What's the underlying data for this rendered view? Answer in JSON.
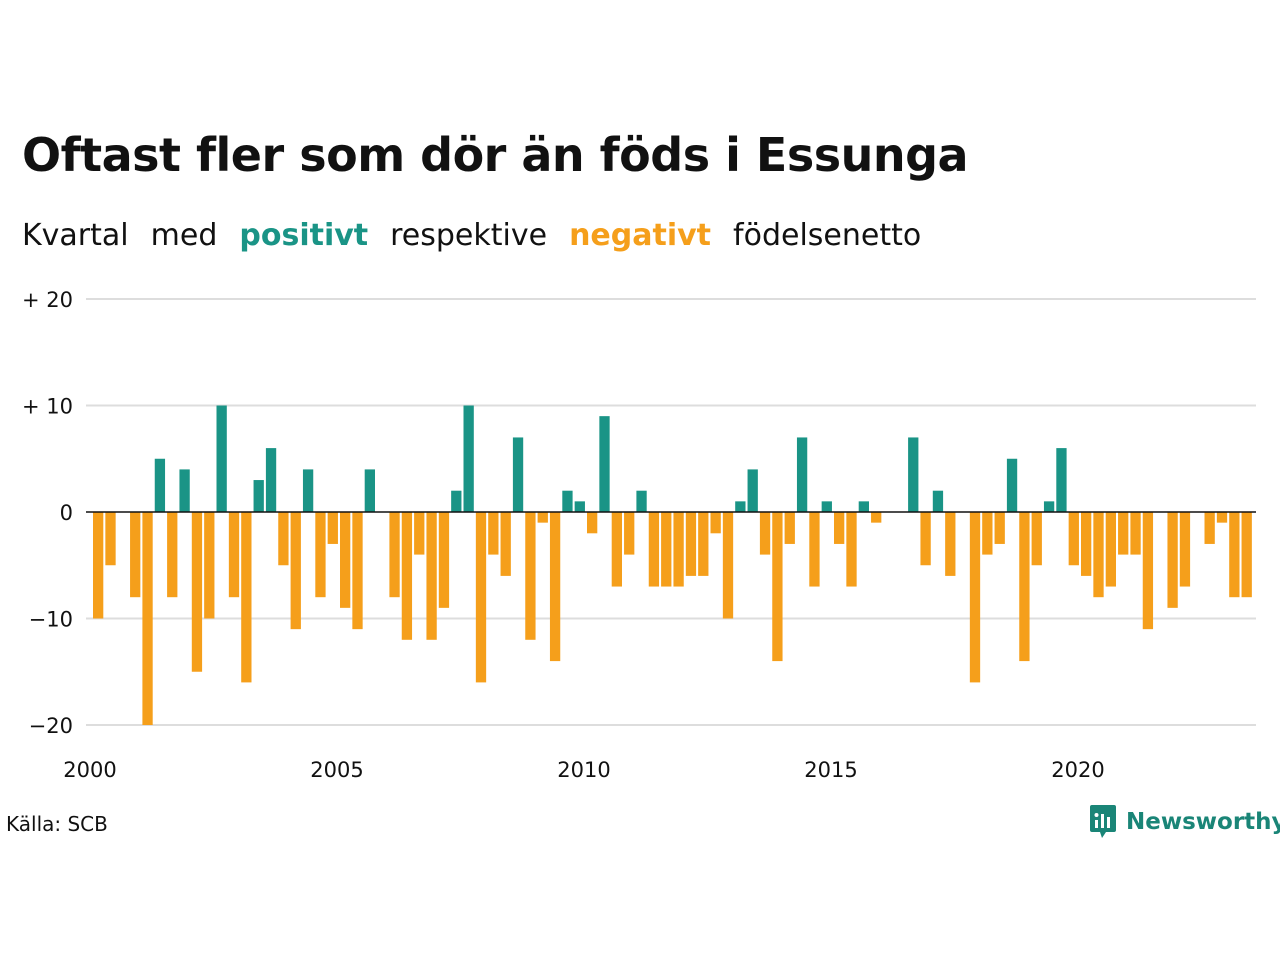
{
  "title": "Oftast fler som dör än föds i Essunga",
  "subtitle": {
    "w1": "Kvartal",
    "w2": "med",
    "positive_word": "positivt",
    "w4": "respektive",
    "negative_word": "negativt",
    "w6": "födelsenetto"
  },
  "source": "Källa: SCB",
  "brand": "Newsworthy",
  "colors": {
    "positive": "#1a9486",
    "negative": "#f59f1b",
    "brand": "#1a8577"
  },
  "chart_data": {
    "type": "bar",
    "title": "Oftast fler som dör än föds i Essunga",
    "xlabel": "",
    "ylabel": "",
    "ylim": [
      -20,
      20
    ],
    "y_ticks": [
      {
        "value": 20,
        "label": "+ 20"
      },
      {
        "value": 10,
        "label": "+ 10"
      },
      {
        "value": 0,
        "label": "0"
      },
      {
        "value": -10,
        "label": "−10"
      },
      {
        "value": -20,
        "label": "−20"
      }
    ],
    "x_ticks": [
      "2000",
      "2005",
      "2010",
      "2015",
      "2020"
    ],
    "grid": true,
    "start": "2000 Q1",
    "values": [
      -10,
      -5,
      0,
      -8,
      -20,
      5,
      -8,
      4,
      -15,
      -10,
      10,
      -8,
      -16,
      3,
      6,
      -5,
      -11,
      4,
      -8,
      -3,
      -9,
      -11,
      4,
      0,
      -8,
      -12,
      -4,
      -12,
      -9,
      2,
      10,
      -16,
      -4,
      -6,
      7,
      -12,
      -1,
      -14,
      2,
      1,
      -2,
      9,
      -7,
      -4,
      2,
      -7,
      -7,
      -7,
      -6,
      -6,
      -2,
      -10,
      1,
      4,
      -4,
      -14,
      -3,
      7,
      -7,
      1,
      -3,
      -7,
      1,
      -1,
      0,
      0,
      7,
      -5,
      2,
      -6,
      0,
      -16,
      -4,
      -3,
      5,
      -14,
      -5,
      1,
      6,
      -5,
      -6,
      -8,
      -7,
      -4,
      -4,
      -11,
      0,
      -9,
      -7,
      0,
      -3,
      -1,
      -8,
      -8
    ]
  }
}
